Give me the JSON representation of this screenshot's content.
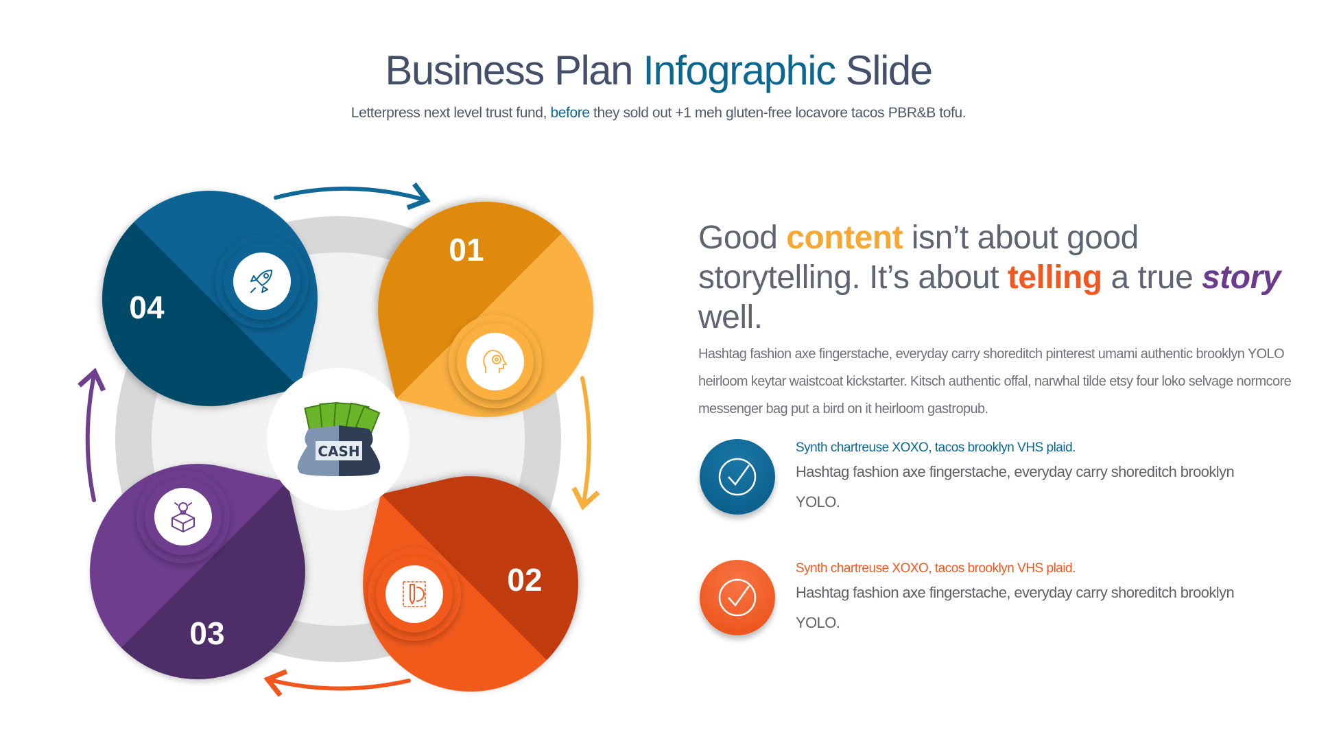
{
  "header": {
    "title_part1": "Business Plan ",
    "title_accent": "Infographic",
    "title_part2": " Slide",
    "subtitle_part1": "Letterpress next level trust fund, ",
    "subtitle_accent": "before",
    "subtitle_part2": " they sold out +1 meh gluten-free locavore tacos PBR&B tofu."
  },
  "diagram": {
    "center_label": "CASH",
    "center_icon": "money-bag-icon",
    "steps": [
      {
        "label": "01",
        "icon": "head-maze-icon",
        "dark": "#e08a08",
        "light": "#fbb040"
      },
      {
        "label": "02",
        "icon": "design-pencil-gear-icon",
        "dark": "#c03a0c",
        "light": "#f25a1e"
      },
      {
        "label": "03",
        "icon": "idea-box-icon",
        "dark": "#4e2f68",
        "light": "#6e3d8e"
      },
      {
        "label": "04",
        "icon": "rocket-icon",
        "dark": "#064868",
        "light": "#0a6494"
      }
    ],
    "arrow_colors": [
      "#106a98",
      "#f6ae3a",
      "#f0561e",
      "#6f3f8e"
    ],
    "ring_color": "#d8d8d8",
    "inner_color": "#f2f2f2"
  },
  "content": {
    "heading": {
      "w1": "Good ",
      "w2": "content",
      "w3": " isn’t about good storytelling. It’s about ",
      "w4": "telling",
      "w5": " a true ",
      "w6": "story",
      "w7": " well."
    },
    "paragraph": "Hashtag fashion axe fingerstache, everyday carry shoreditch pinterest umami authentic brooklyn YOLO heirloom keytar waistcoat kickstarter. Kitsch authentic offal, narwhal tilde etsy four loko selvage normcore messenger bag put a bird on it heirloom gastropub.",
    "features": [
      {
        "title": "Synth chartreuse XOXO, tacos brooklyn VHS plaid.",
        "body": "Hashtag fashion axe fingerstache, everyday carry shoreditch brooklyn YOLO.",
        "color": "#0b6690",
        "icon": "check-circle-icon"
      },
      {
        "title": "Synth chartreuse XOXO, tacos brooklyn VHS plaid.",
        "body": "Hashtag fashion axe fingerstache, everyday carry shoreditch brooklyn YOLO.",
        "color": "#f0561e",
        "icon": "check-circle-icon"
      }
    ]
  }
}
